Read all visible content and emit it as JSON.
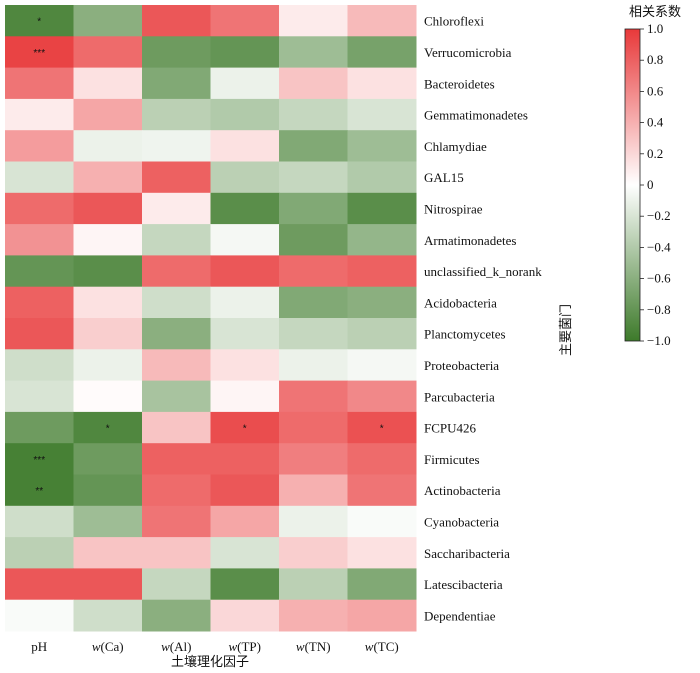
{
  "chart_data": {
    "type": "heatmap",
    "xlabel": "土壤理化因子",
    "ylabel": "主要菌门",
    "x_categories": [
      "pH",
      "w(Ca)",
      "w(Al)",
      "w(TP)",
      "w(TN)",
      "w(TC)"
    ],
    "y_categories": [
      "Chloroflexi",
      "Verrucomicrobia",
      "Bacteroidetes",
      "Gemmatimonadetes",
      "Chlamydiae",
      "GAL15",
      "Nitrospirae",
      "Armatimonadetes",
      "unclassified_k_norank",
      "Acidobacteria",
      "Planctomycetes",
      "Proteobacteria",
      "Parcubacteria",
      "FCPU426",
      "Firmicutes",
      "Actinobacteria",
      "Cyanobacteria",
      "Saccharibacteria",
      "Latescibacteria",
      "Dependentiae"
    ],
    "values": [
      [
        -0.9,
        -0.6,
        0.85,
        0.7,
        0.1,
        0.35
      ],
      [
        0.95,
        0.75,
        -0.75,
        -0.8,
        -0.5,
        -0.7
      ],
      [
        0.7,
        0.15,
        -0.65,
        -0.1,
        0.3,
        0.15
      ],
      [
        0.1,
        0.45,
        -0.35,
        -0.4,
        -0.3,
        -0.2
      ],
      [
        0.5,
        -0.1,
        -0.08,
        0.15,
        -0.65,
        -0.5
      ],
      [
        -0.2,
        0.4,
        0.8,
        -0.35,
        -0.3,
        -0.4
      ],
      [
        0.75,
        0.85,
        0.1,
        -0.85,
        -0.65,
        -0.85
      ],
      [
        0.55,
        0.05,
        -0.3,
        -0.05,
        -0.75,
        -0.55
      ],
      [
        -0.8,
        -0.85,
        0.75,
        0.85,
        0.75,
        0.8
      ],
      [
        0.8,
        0.15,
        -0.25,
        -0.1,
        -0.65,
        -0.6
      ],
      [
        0.85,
        0.25,
        -0.6,
        -0.2,
        -0.3,
        -0.35
      ],
      [
        -0.25,
        -0.1,
        0.35,
        0.15,
        -0.1,
        -0.05
      ],
      [
        -0.2,
        0.02,
        -0.45,
        0.05,
        0.7,
        0.6
      ],
      [
        -0.75,
        -0.9,
        0.3,
        0.9,
        0.75,
        0.88
      ],
      [
        -0.95,
        -0.75,
        0.8,
        0.8,
        0.65,
        0.75
      ],
      [
        -0.95,
        -0.8,
        0.75,
        0.85,
        0.4,
        0.7
      ],
      [
        -0.25,
        -0.5,
        0.7,
        0.45,
        -0.1,
        -0.03
      ],
      [
        -0.35,
        0.3,
        0.3,
        -0.2,
        0.25,
        0.15
      ],
      [
        0.85,
        0.85,
        -0.3,
        -0.85,
        -0.35,
        -0.65
      ],
      [
        -0.03,
        -0.25,
        -0.6,
        0.2,
        0.4,
        0.45
      ]
    ],
    "significance": [
      [
        "*",
        "",
        "",
        "",
        "",
        ""
      ],
      [
        "***",
        "",
        "",
        "",
        "",
        ""
      ],
      [
        "",
        "",
        "",
        "",
        "",
        ""
      ],
      [
        "",
        "",
        "",
        "",
        "",
        ""
      ],
      [
        "",
        "",
        "",
        "",
        "",
        ""
      ],
      [
        "",
        "",
        "",
        "",
        "",
        ""
      ],
      [
        "",
        "",
        "",
        "",
        "",
        ""
      ],
      [
        "",
        "",
        "",
        "",
        "",
        ""
      ],
      [
        "",
        "",
        "",
        "",
        "",
        ""
      ],
      [
        "",
        "",
        "",
        "",
        "",
        ""
      ],
      [
        "",
        "",
        "",
        "",
        "",
        ""
      ],
      [
        "",
        "",
        "",
        "",
        "",
        ""
      ],
      [
        "",
        "",
        "",
        "",
        "",
        ""
      ],
      [
        "",
        "*",
        "",
        "*",
        "",
        "*"
      ],
      [
        "***",
        "",
        "",
        "",
        "",
        ""
      ],
      [
        "**",
        "",
        "",
        "",
        "",
        ""
      ],
      [
        "",
        "",
        "",
        "",
        "",
        ""
      ],
      [
        "",
        "",
        "",
        "",
        "",
        ""
      ],
      [
        "",
        "",
        "",
        "",
        "",
        ""
      ],
      [
        "",
        "",
        "",
        "",
        "",
        ""
      ]
    ],
    "colorbar": {
      "title": "相关系数",
      "range": [
        -1.0,
        1.0
      ],
      "ticks": [
        "1.0",
        "0.8",
        "0.6",
        "0.4",
        "0.2",
        "0",
        "−0.2",
        "−0.4",
        "−0.6",
        "−0.8",
        "−1.0"
      ],
      "tick_values": [
        1.0,
        0.8,
        0.6,
        0.4,
        0.2,
        0,
        -0.2,
        -0.4,
        -0.6,
        -0.8,
        -1.0
      ],
      "color_high": "#e8393a",
      "color_mid": "#ffffff",
      "color_low": "#3d7a2a"
    }
  }
}
